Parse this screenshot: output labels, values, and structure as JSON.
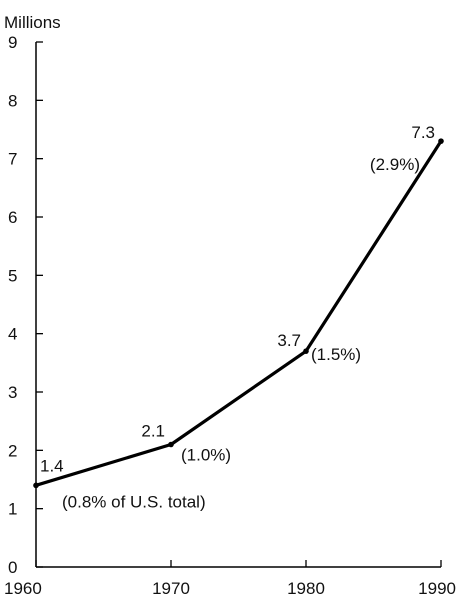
{
  "chart_data": {
    "type": "line",
    "ylabel": "Millions",
    "xlabel": "",
    "x": [
      1960,
      1970,
      1980,
      1990
    ],
    "series": [
      {
        "values": [
          1.4,
          2.1,
          3.7,
          7.3
        ]
      }
    ],
    "data_labels": [
      "1.4",
      "2.1",
      "3.7",
      "7.3"
    ],
    "share_labels": [
      "(0.8% of U.S. total)",
      "(1.0%)",
      "(1.5%)",
      "(2.9%)"
    ],
    "x_ticks": [
      1960,
      1970,
      1980,
      1990
    ],
    "x_tick_labels": [
      "1960",
      "1970",
      "1980",
      "1990"
    ],
    "y_ticks": [
      0,
      1,
      2,
      3,
      4,
      5,
      6,
      7,
      8,
      9
    ],
    "y_tick_labels": [
      "0",
      "1",
      "2",
      "3",
      "4",
      "5",
      "6",
      "7",
      "8",
      "9"
    ],
    "xlim": [
      1960,
      1990
    ],
    "ylim": [
      0,
      9
    ],
    "grid": false,
    "legend": "none",
    "line_color": "#000000"
  }
}
